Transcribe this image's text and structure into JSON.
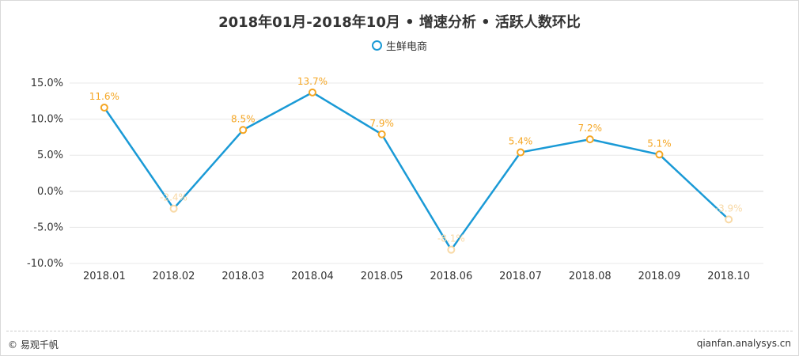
{
  "title": "2018年01月-2018年10月 • 增速分析 • 活跃人数环比",
  "legend": {
    "label": "生鲜电商",
    "marker": "circle-outline"
  },
  "colors": {
    "line": "#1a9ad6",
    "point": "#f5a623",
    "axis_text": "#333333",
    "grid": "#e8e8e8"
  },
  "footer": {
    "left": "© 易观千帆",
    "right": "qianfan.analysys.cn"
  },
  "chart_data": {
    "type": "line",
    "title": "2018年01月-2018年10月 • 增速分析 • 活跃人数环比",
    "categories": [
      "2018.01",
      "2018.02",
      "2018.03",
      "2018.04",
      "2018.05",
      "2018.06",
      "2018.07",
      "2018.08",
      "2018.09",
      "2018.10"
    ],
    "series": [
      {
        "name": "生鲜电商",
        "values": [
          11.6,
          -2.4,
          8.5,
          13.7,
          7.9,
          -8.1,
          5.4,
          7.2,
          5.1,
          -3.9
        ],
        "labels": [
          "11.6%",
          "-2.4%",
          "8.5%",
          "13.7%",
          "7.9%",
          "-8.1%",
          "5.4%",
          "7.2%",
          "5.1%",
          "-3.9%"
        ]
      }
    ],
    "y_ticks": [
      15,
      10,
      5,
      0,
      -5,
      -10
    ],
    "y_tick_labels": [
      "15.0%",
      "10.0%",
      "5.0%",
      "0.0%",
      "-5.0%",
      "-10.0%"
    ],
    "ylim": [
      -10,
      15
    ],
    "grid": true,
    "legend_position": "top-center"
  }
}
